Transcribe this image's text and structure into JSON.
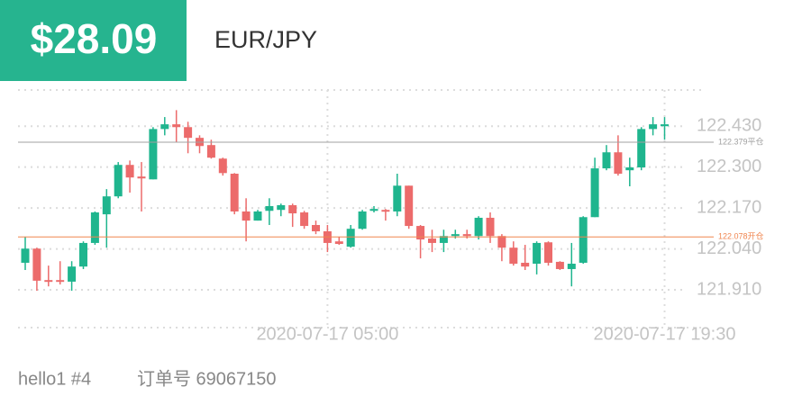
{
  "header": {
    "price": "$28.09",
    "symbol": "EUR/JPY"
  },
  "chart_data": {
    "type": "candlestick",
    "categories": [
      null,
      null,
      null,
      null,
      null,
      null,
      null,
      null,
      null,
      null,
      null,
      null,
      null,
      null,
      null,
      null,
      null,
      null,
      null,
      null,
      null,
      null,
      null,
      null,
      null,
      null,
      "2020-07-17 05:00",
      null,
      null,
      null,
      null,
      null,
      null,
      null,
      null,
      null,
      null,
      null,
      null,
      null,
      null,
      null,
      null,
      null,
      null,
      null,
      null,
      null,
      null,
      null,
      null,
      null,
      null,
      null,
      null,
      "2020-07-17 19:30"
    ],
    "open": [
      121.996,
      122.041,
      121.941,
      121.941,
      121.936,
      121.984,
      122.059,
      122.15,
      122.207,
      122.307,
      122.27,
      122.261,
      122.421,
      122.436,
      122.427,
      122.393,
      122.37,
      122.327,
      122.279,
      122.159,
      122.13,
      122.161,
      122.164,
      122.179,
      122.156,
      122.116,
      122.096,
      122.064,
      122.047,
      122.104,
      122.161,
      122.164,
      122.159,
      122.241,
      122.113,
      122.073,
      122.059,
      122.081,
      122.087,
      122.081,
      122.139,
      122.081,
      122.044,
      121.996,
      121.993,
      122.061,
      121.999,
      121.976,
      121.996,
      122.141,
      122.296,
      122.347,
      122.29,
      122.299,
      122.421,
      122.43
    ],
    "high": [
      122.079,
      122.044,
      121.987,
      122.001,
      122.001,
      122.064,
      122.159,
      122.23,
      122.316,
      122.321,
      122.316,
      122.427,
      122.459,
      122.481,
      122.444,
      122.401,
      122.387,
      122.33,
      122.281,
      122.201,
      122.164,
      122.201,
      122.184,
      122.184,
      122.161,
      122.13,
      122.116,
      122.079,
      122.116,
      122.164,
      122.176,
      122.167,
      122.279,
      122.241,
      122.116,
      122.101,
      122.101,
      122.101,
      122.101,
      122.144,
      122.156,
      122.087,
      122.064,
      122.053,
      122.064,
      122.064,
      122.001,
      122.059,
      122.144,
      122.33,
      122.37,
      122.401,
      122.33,
      122.427,
      122.459,
      122.459
    ],
    "low": [
      121.973,
      121.907,
      121.921,
      121.927,
      121.907,
      121.976,
      122.053,
      122.044,
      122.201,
      122.219,
      122.159,
      122.261,
      122.401,
      122.379,
      122.344,
      122.344,
      122.327,
      122.273,
      122.15,
      122.064,
      122.13,
      122.116,
      122.144,
      122.11,
      122.104,
      122.087,
      122.03,
      122.053,
      122.044,
      122.101,
      122.156,
      122.13,
      122.144,
      122.104,
      122.01,
      122.03,
      122.03,
      122.073,
      122.073,
      122.07,
      122.059,
      122.001,
      121.987,
      121.973,
      121.959,
      121.987,
      121.973,
      121.921,
      121.993,
      122.141,
      122.29,
      122.273,
      122.239,
      122.29,
      122.401,
      122.387
    ],
    "close": [
      122.041,
      121.939,
      121.936,
      121.939,
      121.984,
      122.059,
      122.156,
      122.207,
      122.307,
      122.267,
      122.264,
      122.421,
      122.436,
      122.427,
      122.393,
      122.367,
      122.33,
      122.281,
      122.159,
      122.13,
      122.159,
      122.176,
      122.179,
      122.153,
      122.113,
      122.096,
      122.059,
      122.056,
      122.104,
      122.159,
      122.167,
      122.159,
      122.241,
      122.113,
      122.07,
      122.059,
      122.081,
      122.087,
      122.081,
      122.139,
      122.081,
      122.044,
      121.993,
      121.984,
      122.059,
      121.996,
      121.976,
      121.993,
      122.141,
      122.296,
      122.347,
      122.279,
      122.299,
      122.421,
      122.436,
      122.436
    ],
    "up_color": "#1fb58e",
    "down_color": "#ec6b6b",
    "ylim": [
      121.79,
      122.545
    ],
    "yticks": [
      {
        "value": 122.43,
        "label": "122.430"
      },
      {
        "value": 122.3,
        "label": "122.300"
      },
      {
        "value": 122.17,
        "label": "122.170"
      },
      {
        "value": 122.04,
        "label": "122.040"
      },
      {
        "value": 121.91,
        "label": "121.910"
      }
    ],
    "grid": true,
    "price_lines": [
      {
        "value": 122.379,
        "label": "122.379平仓",
        "color": "#a0a0a0"
      },
      {
        "value": 122.078,
        "label": "122.078开仓",
        "color": "#f0854f"
      }
    ]
  },
  "footer": {
    "account": "hello1 #4",
    "order": "订单号 69067150"
  }
}
